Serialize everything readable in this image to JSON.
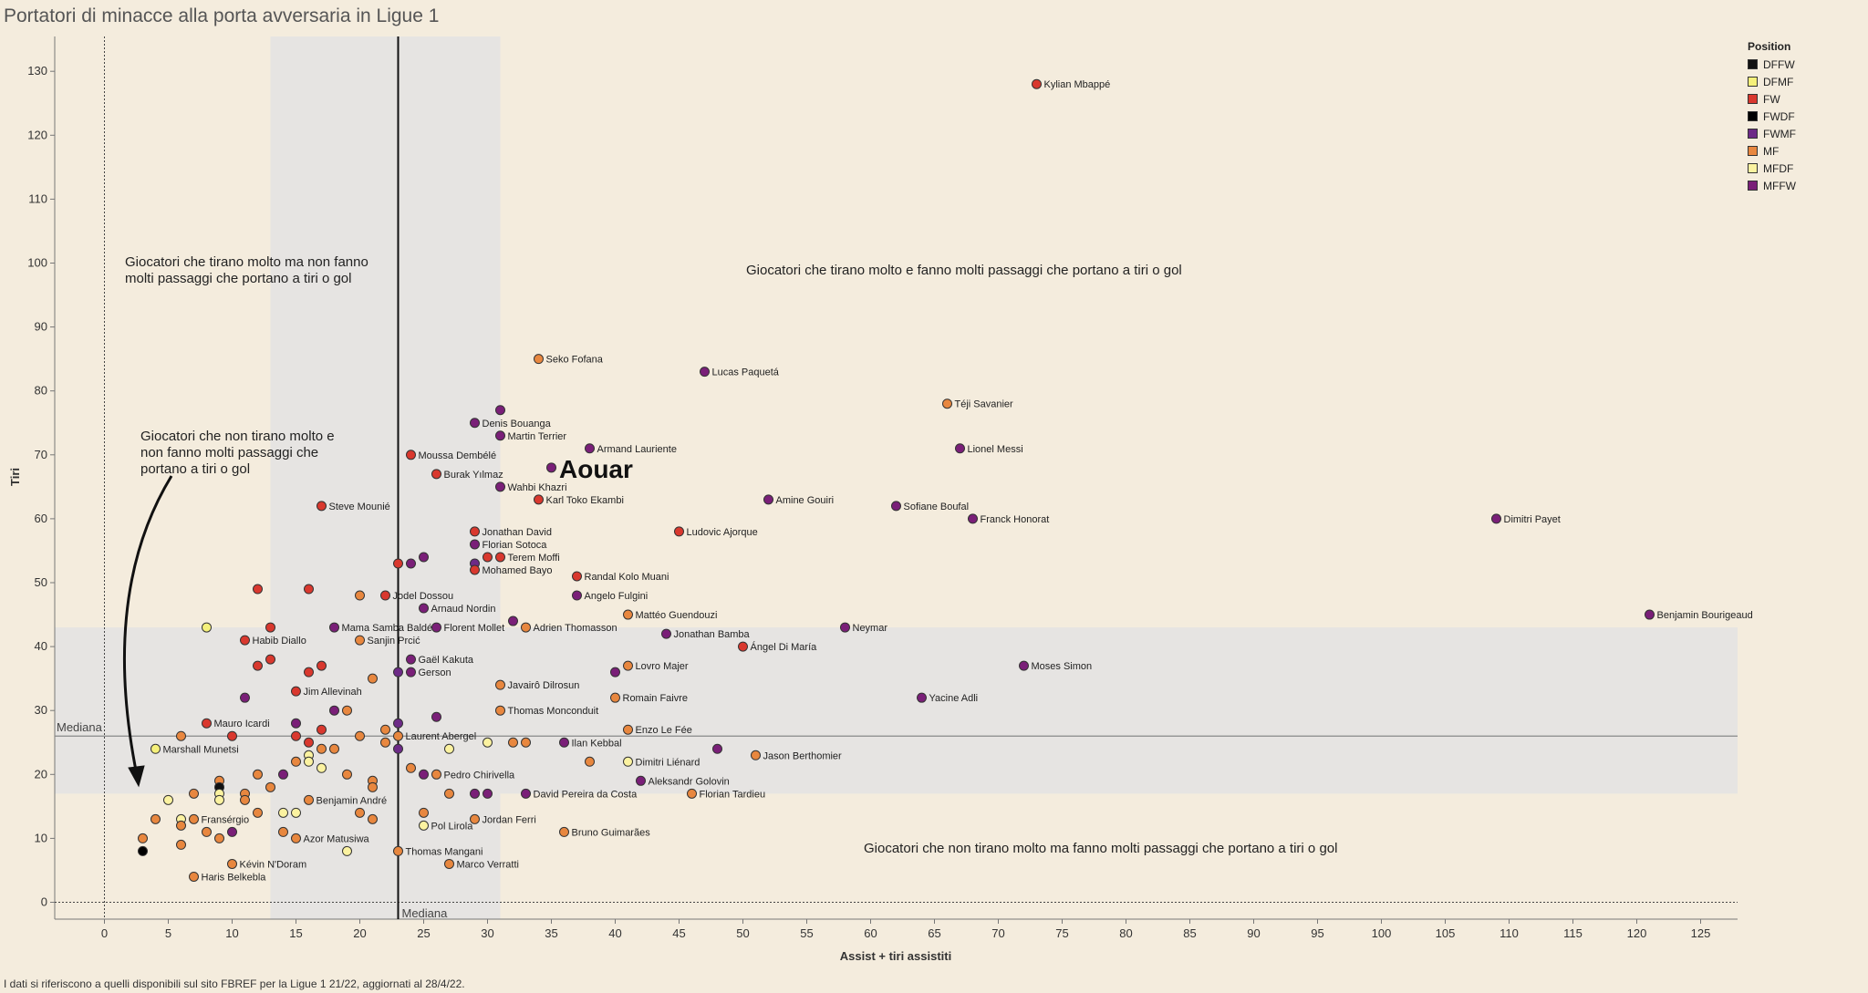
{
  "title": "Portatori di minacce alla porta avversaria in Ligue 1",
  "footnote": "I dati si riferiscono a quelli disponibili sul sito FBREF per la Ligue 1 21/22,  aggiornati al 28/4/22.",
  "legend": {
    "title": "Position",
    "items": [
      {
        "label": "DFFW",
        "color": "#111111"
      },
      {
        "label": "DFMF",
        "color": "#f5f07a"
      },
      {
        "label": "FW",
        "color": "#d9382e"
      },
      {
        "label": "FWDF",
        "color": "#000000"
      },
      {
        "label": "FWMF",
        "color": "#6d2a87"
      },
      {
        "label": "MF",
        "color": "#e8873f"
      },
      {
        "label": "MFDF",
        "color": "#fbf2a0"
      },
      {
        "label": "MFFW",
        "color": "#7a1f78"
      }
    ]
  },
  "annotations": {
    "top_left": [
      "Giocatori che tirano molto ma non fanno",
      "molti passaggi che portano a tiri o gol"
    ],
    "top_right": "Giocatori che tirano molto e fanno molti passaggi che portano a tiri o gol",
    "bottom_left": [
      "Giocatori che non tirano molto e",
      "non fanno molti passaggi che",
      "portano a tiri o gol"
    ],
    "bottom_right": "Giocatori che non tirano molto ma fanno molti passaggi che portano a tiri o gol",
    "median_x_label": "Mediana",
    "median_y_label": "Mediana",
    "highlight": "Aouar"
  },
  "chart_data": {
    "type": "scatter",
    "xlabel": "Assist + tiri assistiti",
    "ylabel": "Tiri",
    "xlim": [
      -4,
      128
    ],
    "ylim": [
      -3,
      135
    ],
    "x_ticks": [
      0,
      5,
      10,
      15,
      20,
      25,
      30,
      35,
      40,
      45,
      50,
      55,
      60,
      65,
      70,
      75,
      80,
      85,
      90,
      95,
      100,
      105,
      110,
      115,
      120,
      125
    ],
    "y_ticks": [
      0,
      10,
      20,
      30,
      40,
      50,
      60,
      70,
      80,
      90,
      100,
      110,
      120,
      130
    ],
    "median_x": 23,
    "median_y": 26,
    "band_x": [
      13,
      31
    ],
    "band_y": [
      17,
      43
    ],
    "grid": false,
    "legend_position": "top-right",
    "points": [
      {
        "x": 73,
        "y": 128,
        "pos": "FW",
        "label": "Kylian Mbappé"
      },
      {
        "x": 109,
        "y": 60,
        "pos": "MFFW",
        "label": "Dimitri Payet"
      },
      {
        "x": 121,
        "y": 45,
        "pos": "MFFW",
        "label": "Benjamin Bourigeaud"
      },
      {
        "x": 72,
        "y": 37,
        "pos": "MFFW",
        "label": "Moses Simon"
      },
      {
        "x": 64,
        "y": 32,
        "pos": "MFFW",
        "label": "Yacine Adli"
      },
      {
        "x": 68,
        "y": 60,
        "pos": "MFFW",
        "label": "Franck Honorat"
      },
      {
        "x": 67,
        "y": 71,
        "pos": "MFFW",
        "label": "Lionel Messi"
      },
      {
        "x": 66,
        "y": 78,
        "pos": "MF",
        "label": "Téji Savanier"
      },
      {
        "x": 62,
        "y": 62,
        "pos": "MFFW",
        "label": "Sofiane Boufal"
      },
      {
        "x": 58,
        "y": 43,
        "pos": "MFFW",
        "label": "Neymar"
      },
      {
        "x": 52,
        "y": 63,
        "pos": "MFFW",
        "label": "Amine Gouiri"
      },
      {
        "x": 50,
        "y": 40,
        "pos": "FW",
        "label": "Ángel Di María"
      },
      {
        "x": 51,
        "y": 23,
        "pos": "MF",
        "label": "Jason Berthomier"
      },
      {
        "x": 47,
        "y": 83,
        "pos": "MFFW",
        "label": "Lucas Paquetá"
      },
      {
        "x": 46,
        "y": 17,
        "pos": "MF",
        "label": "Florian Tardieu"
      },
      {
        "x": 45,
        "y": 58,
        "pos": "FW",
        "label": "Ludovic Ajorque"
      },
      {
        "x": 44,
        "y": 42,
        "pos": "MFFW",
        "label": "Jonathan Bamba"
      },
      {
        "x": 48,
        "y": 24,
        "pos": "MFFW",
        "label": ""
      },
      {
        "x": 42,
        "y": 19,
        "pos": "MFFW",
        "label": "Aleksandr Golovin"
      },
      {
        "x": 41,
        "y": 22,
        "pos": "MFDF",
        "label": "Dimitri Liénard"
      },
      {
        "x": 41,
        "y": 45,
        "pos": "MF",
        "label": "Mattéo Guendouzi"
      },
      {
        "x": 41,
        "y": 37,
        "pos": "MF",
        "label": "Lovro Majer"
      },
      {
        "x": 41,
        "y": 27,
        "pos": "MF",
        "label": "Enzo Le Fée"
      },
      {
        "x": 40,
        "y": 32,
        "pos": "MF",
        "label": "Romain Faivre"
      },
      {
        "x": 40,
        "y": 36,
        "pos": "MFFW",
        "label": ""
      },
      {
        "x": 38,
        "y": 71,
        "pos": "MFFW",
        "label": "Armand Lauriente"
      },
      {
        "x": 38,
        "y": 22,
        "pos": "MF",
        "label": ""
      },
      {
        "x": 37,
        "y": 51,
        "pos": "FW",
        "label": "Randal Kolo Muani"
      },
      {
        "x": 37,
        "y": 48,
        "pos": "MFFW",
        "label": "Angelo Fulgini"
      },
      {
        "x": 36,
        "y": 25,
        "pos": "MFFW",
        "label": "Ilan Kebbal"
      },
      {
        "x": 36,
        "y": 11,
        "pos": "MF",
        "label": "Bruno Guimarães"
      },
      {
        "x": 35,
        "y": 68,
        "pos": "MFFW",
        "label": ""
      },
      {
        "x": 34,
        "y": 85,
        "pos": "MF",
        "label": "Seko Fofana"
      },
      {
        "x": 34,
        "y": 63,
        "pos": "FW",
        "label": "Karl Toko Ekambi"
      },
      {
        "x": 33,
        "y": 43,
        "pos": "MF",
        "label": "Adrien Thomasson"
      },
      {
        "x": 32,
        "y": 44,
        "pos": "MFFW",
        "label": ""
      },
      {
        "x": 33,
        "y": 17,
        "pos": "MFFW",
        "label": "David Pereira da Costa"
      },
      {
        "x": 33,
        "y": 25,
        "pos": "MF",
        "label": ""
      },
      {
        "x": 32,
        "y": 25,
        "pos": "MF",
        "label": ""
      },
      {
        "x": 31,
        "y": 77,
        "pos": "MFFW",
        "label": ""
      },
      {
        "x": 31,
        "y": 73,
        "pos": "MFFW",
        "label": "Martin Terrier"
      },
      {
        "x": 31,
        "y": 65,
        "pos": "MFFW",
        "label": "Wahbi Khazri"
      },
      {
        "x": 31,
        "y": 54,
        "pos": "FW",
        "label": "Terem Moffi"
      },
      {
        "x": 31,
        "y": 34,
        "pos": "MF",
        "label": "Javairô Dilrosun"
      },
      {
        "x": 31,
        "y": 30,
        "pos": "MF",
        "label": "Thomas Monconduit"
      },
      {
        "x": 30,
        "y": 54,
        "pos": "FW",
        "label": ""
      },
      {
        "x": 30,
        "y": 25,
        "pos": "MFDF",
        "label": ""
      },
      {
        "x": 30,
        "y": 17,
        "pos": "MFFW",
        "label": ""
      },
      {
        "x": 29,
        "y": 75,
        "pos": "MFFW",
        "label": "Denis Bouanga"
      },
      {
        "x": 29,
        "y": 58,
        "pos": "FW",
        "label": "Jonathan David"
      },
      {
        "x": 29,
        "y": 56,
        "pos": "MFFW",
        "label": "Florian Sotoca"
      },
      {
        "x": 29,
        "y": 53,
        "pos": "FWMF",
        "label": ""
      },
      {
        "x": 29,
        "y": 52,
        "pos": "FW",
        "label": "Mohamed Bayo"
      },
      {
        "x": 29,
        "y": 17,
        "pos": "MFFW",
        "label": ""
      },
      {
        "x": 29,
        "y": 13,
        "pos": "MF",
        "label": "Jordan Ferri"
      },
      {
        "x": 27,
        "y": 24,
        "pos": "MFDF",
        "label": ""
      },
      {
        "x": 27,
        "y": 17,
        "pos": "MF",
        "label": ""
      },
      {
        "x": 27,
        "y": 6,
        "pos": "MF",
        "label": "Marco Verratti"
      },
      {
        "x": 26,
        "y": 67,
        "pos": "FW",
        "label": "Burak Yılmaz"
      },
      {
        "x": 26,
        "y": 43,
        "pos": "MFFW",
        "label": "Florent Mollet"
      },
      {
        "x": 26,
        "y": 29,
        "pos": "MFFW",
        "label": ""
      },
      {
        "x": 26,
        "y": 20,
        "pos": "MF",
        "label": "Pedro Chirivella"
      },
      {
        "x": 25,
        "y": 54,
        "pos": "MFFW",
        "label": ""
      },
      {
        "x": 25,
        "y": 46,
        "pos": "MFFW",
        "label": "Arnaud Nordin"
      },
      {
        "x": 25,
        "y": 20,
        "pos": "MFFW",
        "label": ""
      },
      {
        "x": 25,
        "y": 14,
        "pos": "MF",
        "label": ""
      },
      {
        "x": 25,
        "y": 12,
        "pos": "MFDF",
        "label": "Pol Lirola"
      },
      {
        "x": 24,
        "y": 70,
        "pos": "FW",
        "label": "Moussa Dembélé"
      },
      {
        "x": 24,
        "y": 53,
        "pos": "MFFW",
        "label": ""
      },
      {
        "x": 24,
        "y": 38,
        "pos": "MFFW",
        "label": "Gaël Kakuta"
      },
      {
        "x": 24,
        "y": 36,
        "pos": "MFFW",
        "label": "Gerson"
      },
      {
        "x": 24,
        "y": 21,
        "pos": "MF",
        "label": ""
      },
      {
        "x": 23,
        "y": 53,
        "pos": "FW",
        "label": ""
      },
      {
        "x": 23,
        "y": 36,
        "pos": "FWMF",
        "label": ""
      },
      {
        "x": 23,
        "y": 28,
        "pos": "FWMF",
        "label": ""
      },
      {
        "x": 23,
        "y": 26,
        "pos": "MF",
        "label": "Laurent Abergel"
      },
      {
        "x": 23,
        "y": 24,
        "pos": "FWMF",
        "label": ""
      },
      {
        "x": 23,
        "y": 8,
        "pos": "MF",
        "label": "Thomas Mangani"
      },
      {
        "x": 22,
        "y": 48,
        "pos": "FW",
        "label": "Jodel Dossou"
      },
      {
        "x": 22,
        "y": 27,
        "pos": "MF",
        "label": ""
      },
      {
        "x": 22,
        "y": 25,
        "pos": "MF",
        "label": ""
      },
      {
        "x": 21,
        "y": 35,
        "pos": "MF",
        "label": ""
      },
      {
        "x": 21,
        "y": 19,
        "pos": "MF",
        "label": ""
      },
      {
        "x": 21,
        "y": 18,
        "pos": "MF",
        "label": ""
      },
      {
        "x": 21,
        "y": 13,
        "pos": "MF",
        "label": ""
      },
      {
        "x": 20,
        "y": 48,
        "pos": "MF",
        "label": ""
      },
      {
        "x": 20,
        "y": 41,
        "pos": "MF",
        "label": "Sanjin Prcić"
      },
      {
        "x": 20,
        "y": 26,
        "pos": "MF",
        "label": ""
      },
      {
        "x": 20,
        "y": 14,
        "pos": "MF",
        "label": ""
      },
      {
        "x": 19,
        "y": 30,
        "pos": "MF",
        "label": ""
      },
      {
        "x": 19,
        "y": 20,
        "pos": "MF",
        "label": ""
      },
      {
        "x": 19,
        "y": 8,
        "pos": "MFDF",
        "label": ""
      },
      {
        "x": 18,
        "y": 43,
        "pos": "MFFW",
        "label": "Mama Samba Baldé"
      },
      {
        "x": 18,
        "y": 30,
        "pos": "MFFW",
        "label": ""
      },
      {
        "x": 18,
        "y": 24,
        "pos": "MF",
        "label": ""
      },
      {
        "x": 17,
        "y": 62,
        "pos": "FW",
        "label": "Steve Mounié"
      },
      {
        "x": 17,
        "y": 37,
        "pos": "FW",
        "label": ""
      },
      {
        "x": 17,
        "y": 27,
        "pos": "FW",
        "label": ""
      },
      {
        "x": 17,
        "y": 24,
        "pos": "MF",
        "label": ""
      },
      {
        "x": 17,
        "y": 21,
        "pos": "MFDF",
        "label": ""
      },
      {
        "x": 16,
        "y": 49,
        "pos": "FW",
        "label": ""
      },
      {
        "x": 16,
        "y": 36,
        "pos": "FW",
        "label": ""
      },
      {
        "x": 16,
        "y": 25,
        "pos": "FW",
        "label": ""
      },
      {
        "x": 16,
        "y": 23,
        "pos": "MFDF",
        "label": ""
      },
      {
        "x": 16,
        "y": 22,
        "pos": "MFDF",
        "label": ""
      },
      {
        "x": 16,
        "y": 16,
        "pos": "MF",
        "label": "Benjamin André"
      },
      {
        "x": 15,
        "y": 33,
        "pos": "FW",
        "label": "Jim Allevinah"
      },
      {
        "x": 15,
        "y": 28,
        "pos": "MFFW",
        "label": ""
      },
      {
        "x": 15,
        "y": 26,
        "pos": "FW",
        "label": ""
      },
      {
        "x": 15,
        "y": 22,
        "pos": "MF",
        "label": ""
      },
      {
        "x": 15,
        "y": 14,
        "pos": "MFDF",
        "label": ""
      },
      {
        "x": 15,
        "y": 10,
        "pos": "MF",
        "label": "Azor Matusiwa"
      },
      {
        "x": 14,
        "y": 20,
        "pos": "MFFW",
        "label": ""
      },
      {
        "x": 14,
        "y": 14,
        "pos": "MFDF",
        "label": ""
      },
      {
        "x": 14,
        "y": 11,
        "pos": "MF",
        "label": ""
      },
      {
        "x": 13,
        "y": 43,
        "pos": "FW",
        "label": ""
      },
      {
        "x": 13,
        "y": 38,
        "pos": "FW",
        "label": ""
      },
      {
        "x": 13,
        "y": 18,
        "pos": "MF",
        "label": ""
      },
      {
        "x": 12,
        "y": 49,
        "pos": "FW",
        "label": ""
      },
      {
        "x": 12,
        "y": 37,
        "pos": "FW",
        "label": ""
      },
      {
        "x": 12,
        "y": 20,
        "pos": "MF",
        "label": ""
      },
      {
        "x": 12,
        "y": 14,
        "pos": "MF",
        "label": ""
      },
      {
        "x": 11,
        "y": 41,
        "pos": "FW",
        "label": "Habib Diallo"
      },
      {
        "x": 11,
        "y": 32,
        "pos": "MFFW",
        "label": ""
      },
      {
        "x": 11,
        "y": 17,
        "pos": "MF",
        "label": ""
      },
      {
        "x": 11,
        "y": 16,
        "pos": "MF",
        "label": ""
      },
      {
        "x": 10,
        "y": 26,
        "pos": "FW",
        "label": ""
      },
      {
        "x": 10,
        "y": 11,
        "pos": "MFFW",
        "label": ""
      },
      {
        "x": 10,
        "y": 6,
        "pos": "MF",
        "label": "Kévin N'Doram"
      },
      {
        "x": 9,
        "y": 19,
        "pos": "MF",
        "label": ""
      },
      {
        "x": 9,
        "y": 18,
        "pos": "DFFW",
        "label": ""
      },
      {
        "x": 9,
        "y": 17,
        "pos": "MFDF",
        "label": ""
      },
      {
        "x": 9,
        "y": 16,
        "pos": "MFDF",
        "label": ""
      },
      {
        "x": 9,
        "y": 10,
        "pos": "MF",
        "label": ""
      },
      {
        "x": 8,
        "y": 43,
        "pos": "DFMF",
        "label": ""
      },
      {
        "x": 8,
        "y": 28,
        "pos": "FW",
        "label": "Mauro Icardi"
      },
      {
        "x": 8,
        "y": 11,
        "pos": "MF",
        "label": ""
      },
      {
        "x": 7,
        "y": 17,
        "pos": "MF",
        "label": ""
      },
      {
        "x": 7,
        "y": 13,
        "pos": "MF",
        "label": "Fransérgio"
      },
      {
        "x": 7,
        "y": 4,
        "pos": "MF",
        "label": "Haris Belkebla"
      },
      {
        "x": 6,
        "y": 26,
        "pos": "MF",
        "label": ""
      },
      {
        "x": 6,
        "y": 13,
        "pos": "MFDF",
        "label": ""
      },
      {
        "x": 6,
        "y": 12,
        "pos": "MF",
        "label": ""
      },
      {
        "x": 6,
        "y": 9,
        "pos": "MF",
        "label": ""
      },
      {
        "x": 5,
        "y": 16,
        "pos": "MFDF",
        "label": ""
      },
      {
        "x": 4,
        "y": 24,
        "pos": "DFMF",
        "label": "Marshall Munetsi"
      },
      {
        "x": 4,
        "y": 13,
        "pos": "MF",
        "label": ""
      },
      {
        "x": 3,
        "y": 10,
        "pos": "MF",
        "label": ""
      },
      {
        "x": 3,
        "y": 8,
        "pos": "FWDF",
        "label": ""
      }
    ]
  }
}
